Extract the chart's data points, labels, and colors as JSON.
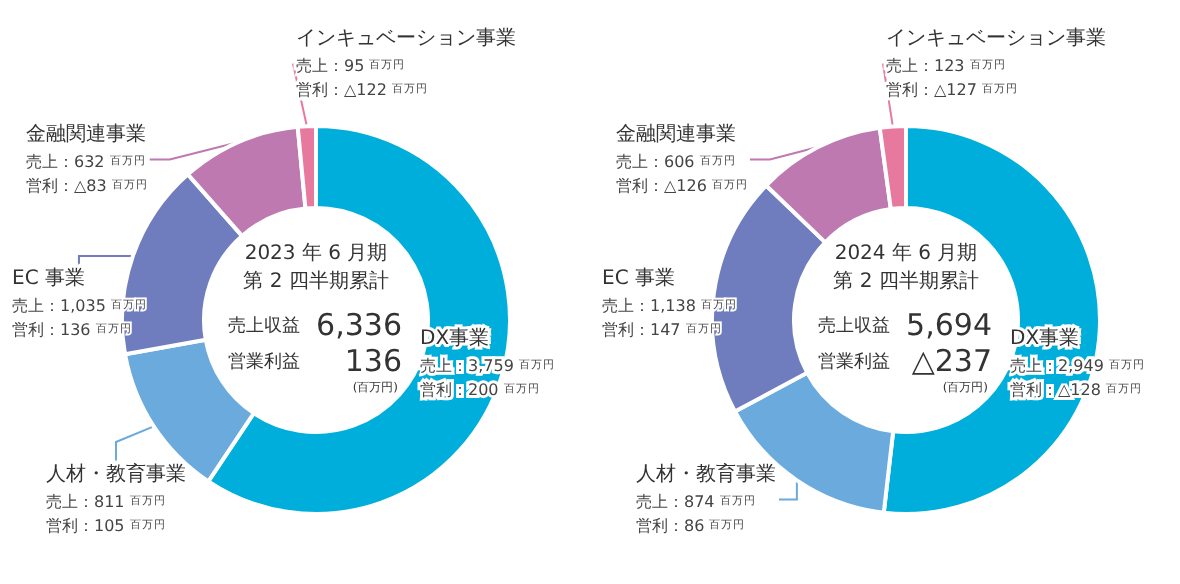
{
  "chart_data": [
    {
      "type": "donut",
      "title": "2023 年 6 月期",
      "subtitle": "第 2 四半期累計",
      "categories": [
        "DX事業",
        "人材・教育事業",
        "EC 事業",
        "金融関連事業",
        "インキュベーション事業"
      ],
      "values": [
        3759,
        811,
        1035,
        632,
        95
      ],
      "colors": [
        "#00aedb",
        "#6aaadc",
        "#6f7dbf",
        "#bd79b0",
        "#e8799e"
      ],
      "value_labels": [
        "売上：3,759 百万円",
        "売上：811 百万円",
        "売上：1,035 百万円",
        "売上：632 百万円",
        "売上：95 百万円"
      ],
      "annotations": [
        {
          "text": "営利：200 百万円",
          "x": "DX事業"
        },
        {
          "text": "営利：105 百万円",
          "x": "人材・教育事業"
        },
        {
          "text": "営利：136 百万円",
          "x": "EC 事業"
        },
        {
          "text": "営利：△83 百万円",
          "x": "金融関連事業"
        },
        {
          "text": "営利：△122 百万円",
          "x": "インキュベーション事業"
        },
        "売上収益",
        "6,336",
        "営業利益",
        "136",
        "(百万円)"
      ],
      "legend": false
    },
    {
      "type": "donut",
      "title": "2024 年 6 月期",
      "subtitle": "第 2 四半期累計",
      "categories": [
        "DX事業",
        "人材・教育事業",
        "EC 事業",
        "金融関連事業",
        "インキュベーション事業"
      ],
      "values": [
        2949,
        874,
        1138,
        606,
        123
      ],
      "colors": [
        "#00aedb",
        "#6aaadc",
        "#6f7dbf",
        "#bd79b0",
        "#e8799e"
      ],
      "value_labels": [
        "売上：2,949 百万円",
        "売上：874 百万円",
        "売上：1,138 百万円",
        "売上：606 百万円",
        "売上：123 百万円"
      ],
      "annotations": [
        {
          "text": "営利：△128 百万円",
          "x": "DX事業"
        },
        {
          "text": "営利：86 百万円",
          "x": "人材・教育事業"
        },
        {
          "text": "営利：147 百万円",
          "x": "EC 事業"
        },
        {
          "text": "営利：△126 百万円",
          "x": "金融関連事業"
        },
        {
          "text": "営利：△127 百万円",
          "x": "インキュベーション事業"
        },
        "売上収益",
        "5,694",
        "営業利益",
        "△237",
        "(百万円)"
      ],
      "legend": false
    }
  ]
}
